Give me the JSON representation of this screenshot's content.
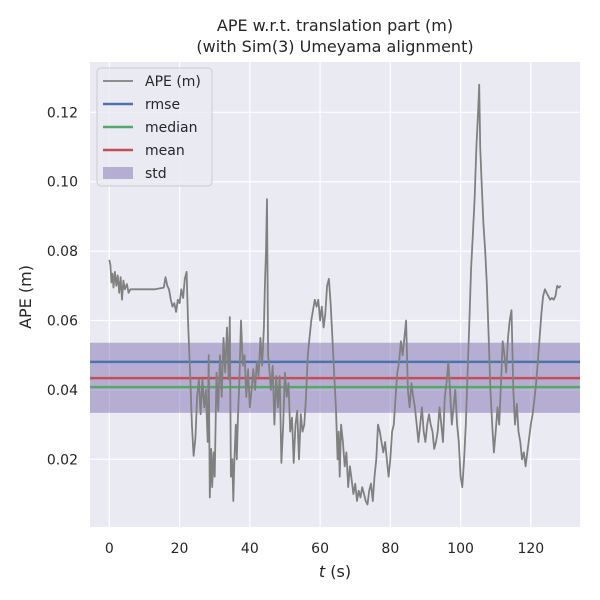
{
  "chart_data": {
    "type": "line",
    "title": [
      "APE w.r.t. translation part (m)",
      "(with Sim(3) Umeyama alignment)"
    ],
    "xlabel_var": "t",
    "xlabel_unit": " (s)",
    "ylabel": "APE (m)",
    "xlim": [
      -5.5,
      134
    ],
    "ylim": [
      0.0005,
      0.1345
    ],
    "xticks": [
      0,
      20,
      40,
      60,
      80,
      100,
      120
    ],
    "yticks": [
      0.02,
      0.04,
      0.06,
      0.08,
      0.1,
      0.12
    ],
    "ytick_labels": [
      "0.02",
      "0.04",
      "0.06",
      "0.08",
      "0.10",
      "0.12"
    ],
    "grid": true,
    "legend_position": "top-left",
    "colors": {
      "background": "#eaeaf2",
      "grid": "#ffffff",
      "ape": "#808080",
      "rmse": "#4c72b0",
      "median": "#55a868",
      "mean": "#c44e52",
      "std": "#8172b2"
    },
    "stats": {
      "rmse": 0.0481,
      "median": 0.0408,
      "mean": 0.0434,
      "std_low": 0.0334,
      "std_high": 0.0536
    },
    "legend": [
      {
        "label": "APE (m)",
        "kind": "line",
        "color": "#808080"
      },
      {
        "label": "rmse",
        "kind": "line",
        "color": "#4c72b0"
      },
      {
        "label": "median",
        "kind": "line",
        "color": "#55a868"
      },
      {
        "label": "mean",
        "kind": "line",
        "color": "#c44e52"
      },
      {
        "label": "std",
        "kind": "patch",
        "color": "#8172b2"
      }
    ],
    "series": [
      {
        "kind": "ape",
        "points": [
          [
            0,
            0.0775
          ],
          [
            0.3,
            0.076
          ],
          [
            0.6,
            0.071
          ],
          [
            0.9,
            0.0735
          ],
          [
            1.2,
            0.0695
          ],
          [
            1.6,
            0.074
          ],
          [
            2,
            0.07
          ],
          [
            2.4,
            0.073
          ],
          [
            2.8,
            0.068
          ],
          [
            3.2,
            0.0725
          ],
          [
            3.6,
            0.066
          ],
          [
            4,
            0.0715
          ],
          [
            4.4,
            0.069
          ],
          [
            5,
            0.0705
          ],
          [
            5.5,
            0.068
          ],
          [
            6,
            0.069
          ],
          [
            8,
            0.069
          ],
          [
            10,
            0.069
          ],
          [
            13,
            0.069
          ],
          [
            15.5,
            0.0695
          ],
          [
            16,
            0.0725
          ],
          [
            16.5,
            0.07
          ],
          [
            17,
            0.069
          ],
          [
            17.5,
            0.066
          ],
          [
            18,
            0.064
          ],
          [
            18.5,
            0.065
          ],
          [
            19,
            0.0625
          ],
          [
            19.5,
            0.066
          ],
          [
            20,
            0.065
          ],
          [
            20.5,
            0.069
          ],
          [
            21,
            0.0665
          ],
          [
            21.5,
            0.072
          ],
          [
            22,
            0.074
          ],
          [
            22.4,
            0.06
          ],
          [
            23,
            0.045
          ],
          [
            23.5,
            0.03
          ],
          [
            24,
            0.021
          ],
          [
            24.5,
            0.026
          ],
          [
            25,
            0.038
          ],
          [
            25.5,
            0.043
          ],
          [
            26,
            0.033
          ],
          [
            26.5,
            0.043
          ],
          [
            27,
            0.035
          ],
          [
            27.5,
            0.04
          ],
          [
            28,
            0.025
          ],
          [
            28.3,
            0.05
          ],
          [
            28.6,
            0.009
          ],
          [
            29,
            0.023
          ],
          [
            29.3,
            0.012
          ],
          [
            29.7,
            0.022
          ],
          [
            30,
            0.015
          ],
          [
            30.5,
            0.045
          ],
          [
            31,
            0.034
          ],
          [
            31.5,
            0.05
          ],
          [
            32,
            0.038
          ],
          [
            32.5,
            0.055
          ],
          [
            33,
            0.045
          ],
          [
            33.5,
            0.058
          ],
          [
            34,
            0.043
          ],
          [
            34.3,
            0.061
          ],
          [
            34.6,
            0.015
          ],
          [
            35,
            0.02
          ],
          [
            35.3,
            0.008
          ],
          [
            35.6,
            0.02
          ],
          [
            36,
            0.03
          ],
          [
            36.3,
            0.02
          ],
          [
            36.6,
            0.032
          ],
          [
            37,
            0.042
          ],
          [
            37.5,
            0.06
          ],
          [
            38,
            0.047
          ],
          [
            38.5,
            0.05
          ],
          [
            39,
            0.038
          ],
          [
            39.5,
            0.046
          ],
          [
            40,
            0.035
          ],
          [
            40.5,
            0.04
          ],
          [
            41,
            0.046
          ],
          [
            41.5,
            0.04
          ],
          [
            42,
            0.048
          ],
          [
            42.5,
            0.044
          ],
          [
            43,
            0.055
          ],
          [
            43.5,
            0.047
          ],
          [
            44,
            0.058
          ],
          [
            44.3,
            0.07
          ],
          [
            44.6,
            0.08
          ],
          [
            44.9,
            0.095
          ],
          [
            45.2,
            0.05
          ],
          [
            45.5,
            0.047
          ],
          [
            46,
            0.04
          ],
          [
            46.5,
            0.047
          ],
          [
            47,
            0.03
          ],
          [
            47.5,
            0.044
          ],
          [
            48,
            0.035
          ],
          [
            48.5,
            0.044
          ],
          [
            49,
            0.019
          ],
          [
            49.5,
            0.03
          ],
          [
            50,
            0.045
          ],
          [
            50.5,
            0.038
          ],
          [
            51,
            0.042
          ],
          [
            51.5,
            0.028
          ],
          [
            52,
            0.032
          ],
          [
            52.5,
            0.019
          ],
          [
            53,
            0.03
          ],
          [
            53.5,
            0.034
          ],
          [
            54,
            0.02
          ],
          [
            54.5,
            0.033
          ],
          [
            55,
            0.028
          ],
          [
            55.5,
            0.03
          ],
          [
            56,
            0.038
          ],
          [
            56.5,
            0.05
          ],
          [
            57,
            0.055
          ],
          [
            57.5,
            0.06
          ],
          [
            58,
            0.063
          ],
          [
            58.5,
            0.066
          ],
          [
            59,
            0.064
          ],
          [
            59.5,
            0.066
          ],
          [
            60,
            0.06
          ],
          [
            60.5,
            0.064
          ],
          [
            61,
            0.058
          ],
          [
            61.5,
            0.062
          ],
          [
            62,
            0.07
          ],
          [
            62.5,
            0.072
          ],
          [
            63,
            0.065
          ],
          [
            63.5,
            0.055
          ],
          [
            64,
            0.045
          ],
          [
            64.5,
            0.035
          ],
          [
            65,
            0.02
          ],
          [
            65.3,
            0.028
          ],
          [
            65.6,
            0.015
          ],
          [
            66,
            0.03
          ],
          [
            66.5,
            0.025
          ],
          [
            67,
            0.018
          ],
          [
            67.5,
            0.022
          ],
          [
            68,
            0.012
          ],
          [
            68.5,
            0.018
          ],
          [
            69,
            0.014
          ],
          [
            69.5,
            0.01
          ],
          [
            70,
            0.013
          ],
          [
            70.5,
            0.008
          ],
          [
            71,
            0.011
          ],
          [
            71.5,
            0.009
          ],
          [
            72,
            0.012
          ],
          [
            72.5,
            0.01
          ],
          [
            73,
            0.008
          ],
          [
            73.5,
            0.007
          ],
          [
            74,
            0.011
          ],
          [
            74.5,
            0.013
          ],
          [
            75,
            0.008
          ],
          [
            75.5,
            0.015
          ],
          [
            76,
            0.02
          ],
          [
            76.5,
            0.03
          ],
          [
            77,
            0.028
          ],
          [
            77.5,
            0.025
          ],
          [
            78,
            0.022
          ],
          [
            78.5,
            0.025
          ],
          [
            79,
            0.02
          ],
          [
            79.5,
            0.015
          ],
          [
            80,
            0.02
          ],
          [
            80.5,
            0.028
          ],
          [
            81,
            0.03
          ],
          [
            81.5,
            0.038
          ],
          [
            82,
            0.045
          ],
          [
            82.5,
            0.048
          ],
          [
            83,
            0.054
          ],
          [
            83.5,
            0.05
          ],
          [
            84,
            0.055
          ],
          [
            84.5,
            0.06
          ],
          [
            85,
            0.04
          ],
          [
            85.5,
            0.035
          ],
          [
            86,
            0.042
          ],
          [
            86.5,
            0.038
          ],
          [
            87,
            0.035
          ],
          [
            87.5,
            0.03
          ],
          [
            88,
            0.025
          ],
          [
            88.5,
            0.03
          ],
          [
            89,
            0.035
          ],
          [
            89.5,
            0.028
          ],
          [
            90,
            0.025
          ],
          [
            90.5,
            0.03
          ],
          [
            91,
            0.033
          ],
          [
            91.5,
            0.03
          ],
          [
            92,
            0.028
          ],
          [
            92.5,
            0.023
          ],
          [
            93,
            0.025
          ],
          [
            93.5,
            0.028
          ],
          [
            94,
            0.035
          ],
          [
            94.5,
            0.03
          ],
          [
            95,
            0.025
          ],
          [
            95.5,
            0.038
          ],
          [
            96,
            0.042
          ],
          [
            96.5,
            0.048
          ],
          [
            97,
            0.04
          ],
          [
            97.5,
            0.03
          ],
          [
            98,
            0.035
          ],
          [
            98.5,
            0.04
          ],
          [
            99,
            0.03
          ],
          [
            99.5,
            0.025
          ],
          [
            100,
            0.015
          ],
          [
            100.5,
            0.012
          ],
          [
            101,
            0.02
          ],
          [
            101.5,
            0.03
          ],
          [
            102,
            0.045
          ],
          [
            102.5,
            0.06
          ],
          [
            103,
            0.075
          ],
          [
            103.5,
            0.085
          ],
          [
            104,
            0.095
          ],
          [
            104.5,
            0.11
          ],
          [
            105,
            0.12
          ],
          [
            105.3,
            0.128
          ],
          [
            105.6,
            0.11
          ],
          [
            106,
            0.1
          ],
          [
            106.5,
            0.088
          ],
          [
            107,
            0.08
          ],
          [
            107.5,
            0.07
          ],
          [
            108,
            0.055
          ],
          [
            108.5,
            0.04
          ],
          [
            109,
            0.03
          ],
          [
            109.5,
            0.022
          ],
          [
            110,
            0.028
          ],
          [
            110.5,
            0.035
          ],
          [
            111,
            0.03
          ],
          [
            111.5,
            0.042
          ],
          [
            112,
            0.054
          ],
          [
            112.5,
            0.05
          ],
          [
            113,
            0.045
          ],
          [
            113.5,
            0.055
          ],
          [
            114,
            0.06
          ],
          [
            114.5,
            0.063
          ],
          [
            115,
            0.04
          ],
          [
            115.5,
            0.03
          ],
          [
            116,
            0.036
          ],
          [
            116.5,
            0.028
          ],
          [
            117,
            0.025
          ],
          [
            117.5,
            0.02
          ],
          [
            118,
            0.022
          ],
          [
            118.5,
            0.018
          ],
          [
            119,
            0.022
          ],
          [
            119.5,
            0.026
          ],
          [
            120,
            0.03
          ],
          [
            120.5,
            0.033
          ],
          [
            121,
            0.037
          ],
          [
            121.5,
            0.042
          ],
          [
            122,
            0.048
          ],
          [
            122.5,
            0.055
          ],
          [
            123,
            0.062
          ],
          [
            123.5,
            0.067
          ],
          [
            124,
            0.069
          ],
          [
            124.5,
            0.068
          ],
          [
            125,
            0.067
          ],
          [
            125.5,
            0.066
          ],
          [
            126,
            0.0665
          ],
          [
            126.5,
            0.066
          ],
          [
            127,
            0.067
          ],
          [
            127.5,
            0.07
          ],
          [
            128,
            0.0695
          ],
          [
            128.5,
            0.07
          ]
        ]
      }
    ]
  }
}
